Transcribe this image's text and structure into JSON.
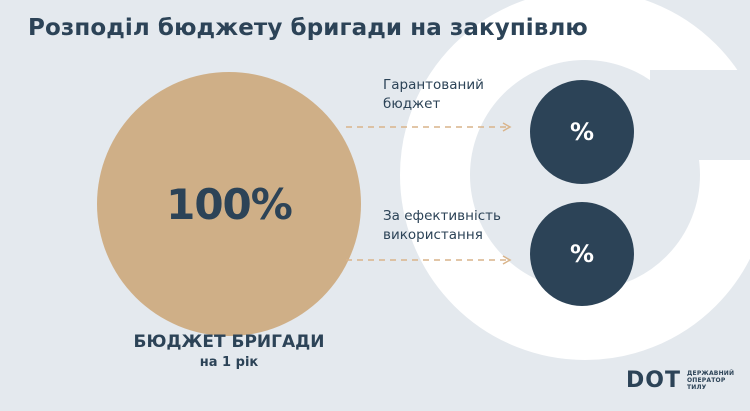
{
  "title": "Розподіл бюджету бригади на закупівлю",
  "main": {
    "value": "100%",
    "label": "БЮДЖЕТ БРИГАДИ",
    "sublabel": "на 1 рік"
  },
  "parts": [
    {
      "label_line1": "Гарантований",
      "label_line2": "бюджет",
      "value": "%"
    },
    {
      "label_line1": "За ефективність",
      "label_line2": "використання",
      "value": "%"
    }
  ],
  "logo": {
    "mark": "DOT",
    "line1": "ДЕРЖАВНИЙ",
    "line2": "ОПЕРАТОР",
    "line3": "ТИЛУ"
  },
  "colors": {
    "background": "#e4e9ee",
    "primary": "#2c4357",
    "accent": "#cfaf87",
    "arrow": "#d9b48a"
  }
}
